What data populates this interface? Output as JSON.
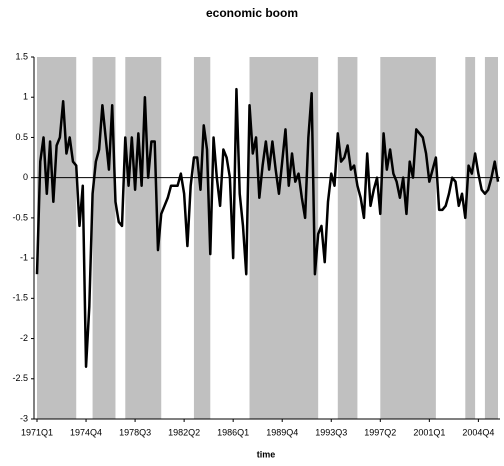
{
  "chart_data": {
    "type": "line",
    "title": "economic boom",
    "x_label": "time",
    "categories": [
      "1971Q1",
      null,
      null,
      null,
      null,
      null,
      null,
      null,
      null,
      null,
      null,
      null,
      null,
      null,
      null,
      "1974Q4",
      null,
      null,
      null,
      null,
      null,
      null,
      null,
      null,
      null,
      null,
      null,
      null,
      null,
      null,
      "1978Q3",
      null,
      null,
      null,
      null,
      null,
      null,
      null,
      null,
      null,
      null,
      null,
      null,
      null,
      null,
      "1982Q2",
      null,
      null,
      null,
      null,
      null,
      null,
      null,
      null,
      null,
      null,
      null,
      null,
      null,
      null,
      "1986Q1",
      null,
      null,
      null,
      null,
      null,
      null,
      null,
      null,
      null,
      null,
      null,
      null,
      null,
      null,
      "1989Q4",
      null,
      null,
      null,
      null,
      null,
      null,
      null,
      null,
      null,
      null,
      null,
      null,
      null,
      null,
      "1993Q3",
      null,
      null,
      null,
      null,
      null,
      null,
      null,
      null,
      null,
      null,
      null,
      null,
      null,
      null,
      "1997Q2",
      null,
      null,
      null,
      null,
      null,
      null,
      null,
      null,
      null,
      null,
      null,
      null,
      null,
      null,
      "2001Q1",
      null,
      null,
      null,
      null,
      null,
      null,
      null,
      null,
      null,
      null,
      null,
      null,
      null,
      null,
      "2004Q4",
      null,
      null,
      null,
      null,
      null,
      null
    ],
    "values": [
      -1.2,
      0.2,
      0.5,
      -0.2,
      0.45,
      -0.3,
      0.4,
      0.5,
      0.95,
      0.3,
      0.5,
      0.2,
      0.15,
      -0.6,
      -0.1,
      -2.35,
      -1.6,
      -0.2,
      0.2,
      0.35,
      0.9,
      0.5,
      0.1,
      0.9,
      -0.3,
      -0.55,
      -0.6,
      0.5,
      -0.1,
      0.5,
      -0.15,
      0.55,
      -0.1,
      1.0,
      0.0,
      0.45,
      0.45,
      -0.9,
      -0.45,
      -0.35,
      -0.25,
      -0.1,
      -0.1,
      -0.1,
      0.05,
      -0.2,
      -0.85,
      -0.1,
      0.25,
      0.25,
      -0.15,
      0.65,
      0.35,
      -0.95,
      0.5,
      0.0,
      -0.35,
      0.35,
      0.25,
      0.0,
      -1.0,
      1.1,
      -0.2,
      -0.6,
      -1.2,
      0.9,
      0.3,
      0.5,
      -0.25,
      0.15,
      0.45,
      0.1,
      0.45,
      0.1,
      -0.2,
      0.2,
      0.6,
      -0.1,
      0.3,
      -0.05,
      0.05,
      -0.25,
      -0.5,
      0.5,
      1.05,
      -1.2,
      -0.7,
      -0.6,
      -1.05,
      -0.3,
      0.05,
      -0.1,
      0.55,
      0.2,
      0.25,
      0.4,
      0.1,
      0.15,
      -0.1,
      -0.25,
      -0.5,
      0.3,
      -0.35,
      -0.15,
      0.0,
      -0.45,
      0.55,
      0.1,
      0.35,
      0.05,
      -0.05,
      -0.25,
      0.0,
      -0.45,
      0.2,
      0.0,
      0.6,
      0.55,
      0.5,
      0.3,
      -0.05,
      0.1,
      0.25,
      -0.4,
      -0.4,
      -0.35,
      -0.2,
      0.0,
      -0.05,
      -0.35,
      -0.2,
      -0.5,
      0.15,
      0.05,
      0.3,
      0.05,
      -0.15,
      -0.2,
      -0.15,
      0.0,
      0.2,
      -0.05
    ],
    "color": "#000000",
    "shaded_periods": [
      [
        0,
        12
      ],
      [
        17,
        24
      ],
      [
        27,
        38
      ],
      [
        48,
        53
      ],
      [
        65,
        86
      ],
      [
        92,
        98
      ],
      [
        105,
        122
      ],
      [
        131,
        134
      ],
      [
        137,
        141
      ]
    ],
    "shade_color": "#c0c0c0",
    "ylim": [
      -3,
      1.5
    ],
    "yticks": [
      1.5,
      1,
      0.5,
      0,
      -0.5,
      -1,
      -1.5,
      -2,
      -2.5,
      -3
    ]
  }
}
